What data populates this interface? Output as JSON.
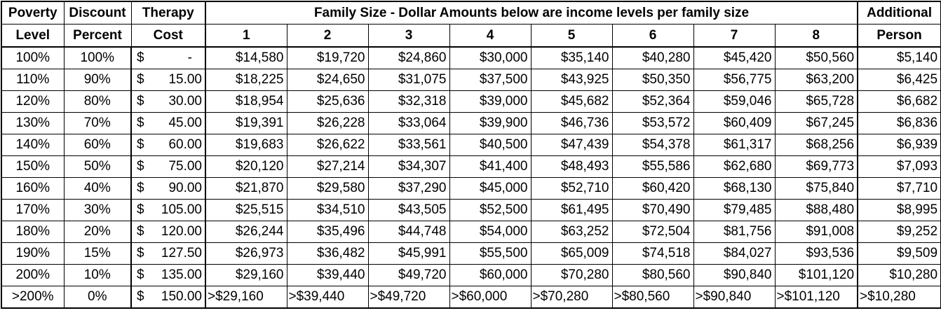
{
  "header": {
    "poverty_level": [
      "Poverty",
      "Level"
    ],
    "discount_percent": [
      "Discount",
      "Percent"
    ],
    "therapy_cost": [
      "Therapy",
      "Cost"
    ],
    "family_size_title": "Family Size - Dollar Amounts below are income levels per family size",
    "family_sizes": [
      "1",
      "2",
      "3",
      "4",
      "5",
      "6",
      "7",
      "8"
    ],
    "additional_person": [
      "Additional",
      "Person"
    ]
  },
  "rows": [
    {
      "poverty": "100%",
      "discount": "100%",
      "cost_symbol": "$",
      "cost_amount": "-",
      "incomes": [
        "$14,580",
        "$19,720",
        "$24,860",
        "$30,000",
        "$35,140",
        "$40,280",
        "$45,420",
        "$50,560"
      ],
      "additional": "$5,140"
    },
    {
      "poverty": "110%",
      "discount": "90%",
      "cost_symbol": "$",
      "cost_amount": "15.00",
      "incomes": [
        "$18,225",
        "$24,650",
        "$31,075",
        "$37,500",
        "$43,925",
        "$50,350",
        "$56,775",
        "$63,200"
      ],
      "additional": "$6,425"
    },
    {
      "poverty": "120%",
      "discount": "80%",
      "cost_symbol": "$",
      "cost_amount": "30.00",
      "incomes": [
        "$18,954",
        "$25,636",
        "$32,318",
        "$39,000",
        "$45,682",
        "$52,364",
        "$59,046",
        "$65,728"
      ],
      "additional": "$6,682"
    },
    {
      "poverty": "130%",
      "discount": "70%",
      "cost_symbol": "$",
      "cost_amount": "45.00",
      "incomes": [
        "$19,391",
        "$26,228",
        "$33,064",
        "$39,900",
        "$46,736",
        "$53,572",
        "$60,409",
        "$67,245"
      ],
      "additional": "$6,836"
    },
    {
      "poverty": "140%",
      "discount": "60%",
      "cost_symbol": "$",
      "cost_amount": "60.00",
      "incomes": [
        "$19,683",
        "$26,622",
        "$33,561",
        "$40,500",
        "$47,439",
        "$54,378",
        "$61,317",
        "$68,256"
      ],
      "additional": "$6,939"
    },
    {
      "poverty": "150%",
      "discount": "50%",
      "cost_symbol": "$",
      "cost_amount": "75.00",
      "incomes": [
        "$20,120",
        "$27,214",
        "$34,307",
        "$41,400",
        "$48,493",
        "$55,586",
        "$62,680",
        "$69,773"
      ],
      "additional": "$7,093"
    },
    {
      "poverty": "160%",
      "discount": "40%",
      "cost_symbol": "$",
      "cost_amount": "90.00",
      "incomes": [
        "$21,870",
        "$29,580",
        "$37,290",
        "$45,000",
        "$52,710",
        "$60,420",
        "$68,130",
        "$75,840"
      ],
      "additional": "$7,710"
    },
    {
      "poverty": "170%",
      "discount": "30%",
      "cost_symbol": "$",
      "cost_amount": "105.00",
      "incomes": [
        "$25,515",
        "$34,510",
        "$43,505",
        "$52,500",
        "$61,495",
        "$70,490",
        "$79,485",
        "$88,480"
      ],
      "additional": "$8,995"
    },
    {
      "poverty": "180%",
      "discount": "20%",
      "cost_symbol": "$",
      "cost_amount": "120.00",
      "incomes": [
        "$26,244",
        "$35,496",
        "$44,748",
        "$54,000",
        "$63,252",
        "$72,504",
        "$81,756",
        "$91,008"
      ],
      "additional": "$9,252"
    },
    {
      "poverty": "190%",
      "discount": "15%",
      "cost_symbol": "$",
      "cost_amount": "127.50",
      "incomes": [
        "$26,973",
        "$36,482",
        "$45,991",
        "$55,500",
        "$65,009",
        "$74,518",
        "$84,027",
        "$93,536"
      ],
      "additional": "$9,509"
    },
    {
      "poverty": "200%",
      "discount": "10%",
      "cost_symbol": "$",
      "cost_amount": "135.00",
      "incomes": [
        "$29,160",
        "$39,440",
        "$49,720",
        "$60,000",
        "$70,280",
        "$80,560",
        "$90,840",
        "$101,120"
      ],
      "additional": "$10,280"
    },
    {
      "poverty": ">200%",
      "discount": "0%",
      "cost_symbol": "$",
      "cost_amount": "150.00",
      "incomes": [
        ">$29,160",
        ">$39,440",
        ">$49,720",
        ">$60,000",
        ">$70,280",
        ">$80,560",
        ">$90,840",
        ">$101,120"
      ],
      "additional": ">$10,280"
    }
  ]
}
